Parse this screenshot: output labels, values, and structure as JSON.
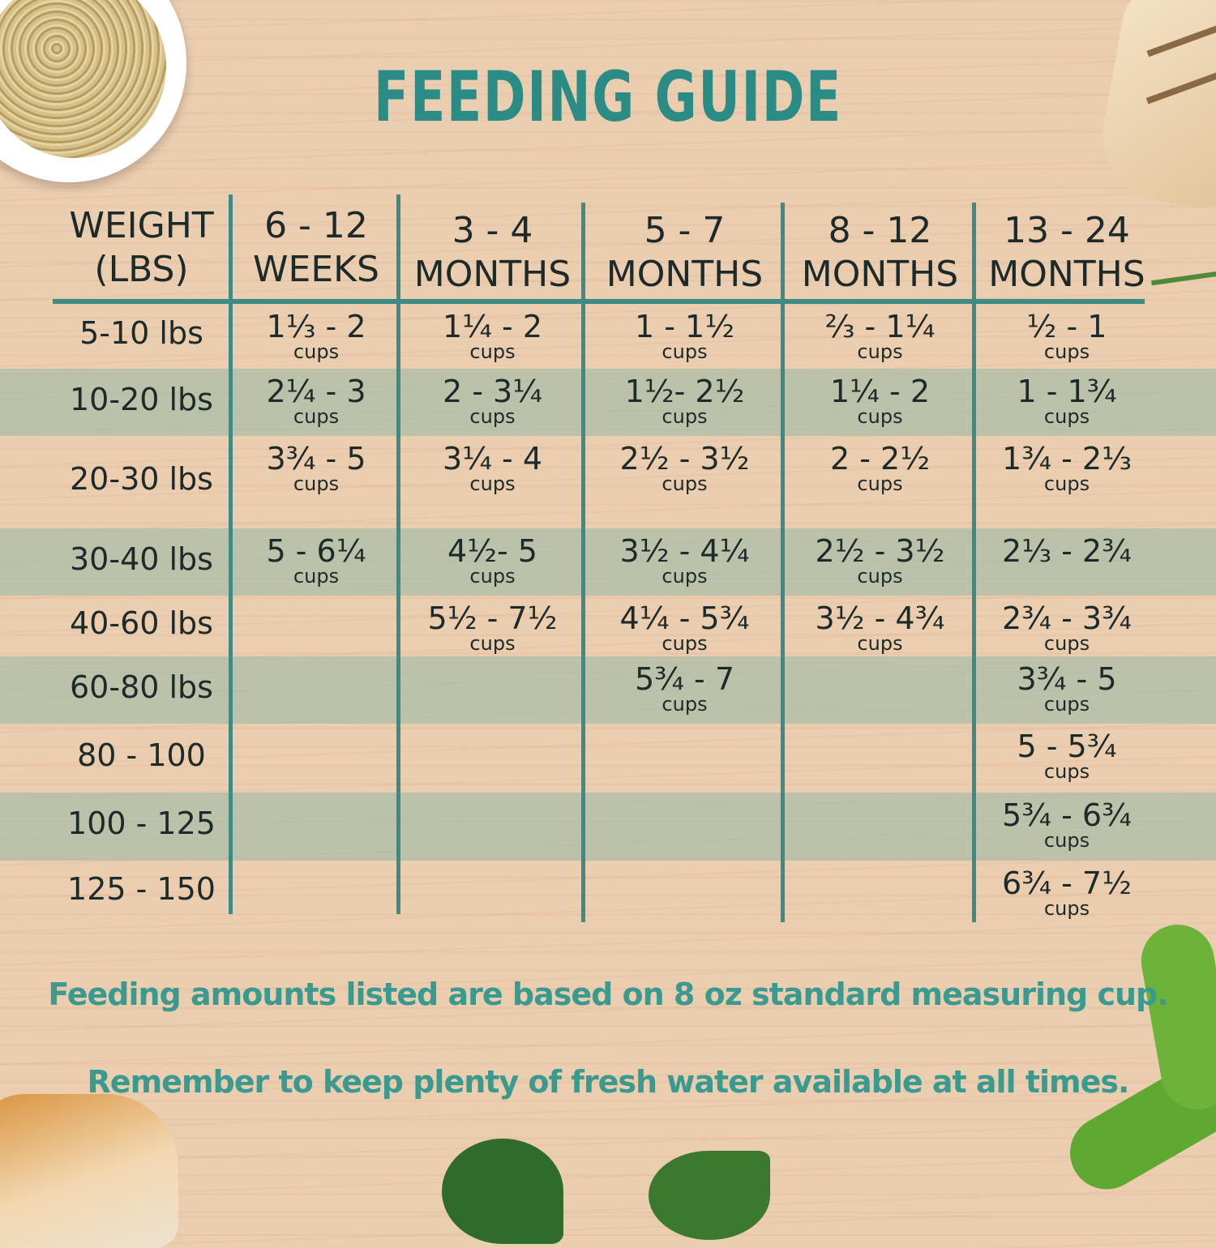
{
  "title": "FEEDING GUIDE",
  "headers": [
    {
      "line1": "WEIGHT",
      "line2": "(LBS)"
    },
    {
      "line1": "6 - 12",
      "line2": "WEEKS"
    },
    {
      "line1": "3 - 4",
      "line2": "MONTHS"
    },
    {
      "line1": "5 - 7",
      "line2": "MONTHS"
    },
    {
      "line1": "8 - 12",
      "line2": "MONTHS"
    },
    {
      "line1": "13 - 24",
      "line2": "MONTHS"
    }
  ],
  "rows": [
    {
      "weight": "5-10 lbs",
      "cells": [
        {
          "amount": "1⅓ - 2",
          "unit": "cups"
        },
        {
          "amount": "1¼ - 2",
          "unit": "cups"
        },
        {
          "amount": "1 - 1½",
          "unit": "cups"
        },
        {
          "amount": "⅔ - 1¼",
          "unit": "cups"
        },
        {
          "amount": "½ - 1",
          "unit": "cups"
        }
      ]
    },
    {
      "weight": "10-20 lbs",
      "cells": [
        {
          "amount": "2¼ - 3",
          "unit": "cups"
        },
        {
          "amount": "2 - 3¼",
          "unit": "cups"
        },
        {
          "amount": "1½- 2½",
          "unit": "cups"
        },
        {
          "amount": "1¼ - 2",
          "unit": "cups"
        },
        {
          "amount": "1 - 1¾",
          "unit": "cups"
        }
      ]
    },
    {
      "weight": "20-30 lbs",
      "cells": [
        {
          "amount": "3¾ - 5",
          "unit": "cups"
        },
        {
          "amount": "3¼ - 4",
          "unit": "cups"
        },
        {
          "amount": "2½ - 3½",
          "unit": "cups"
        },
        {
          "amount": "2 - 2½",
          "unit": "cups"
        },
        {
          "amount": "1¾ - 2⅓",
          "unit": "cups"
        }
      ]
    },
    {
      "weight": "30-40 lbs",
      "cells": [
        {
          "amount": "5 - 6¼",
          "unit": "cups"
        },
        {
          "amount": "4½- 5",
          "unit": "cups"
        },
        {
          "amount": "3½ - 4¼",
          "unit": "cups"
        },
        {
          "amount": "2½ - 3½",
          "unit": "cups"
        },
        {
          "amount": "2⅓ - 2¾",
          "unit": ""
        }
      ]
    },
    {
      "weight": "40-60 lbs",
      "cells": [
        null,
        {
          "amount": "5½ - 7½",
          "unit": "cups"
        },
        {
          "amount": "4¼ - 5¾",
          "unit": "cups"
        },
        {
          "amount": "3½ - 4¾",
          "unit": "cups"
        },
        {
          "amount": "2¾ - 3¾",
          "unit": "cups"
        }
      ]
    },
    {
      "weight": "60-80 lbs",
      "cells": [
        null,
        null,
        {
          "amount": "5¾ - 7",
          "unit": "cups"
        },
        null,
        {
          "amount": "3¾ - 5",
          "unit": "cups"
        }
      ]
    },
    {
      "weight": "80 - 100",
      "cells": [
        null,
        null,
        null,
        null,
        {
          "amount": "5 - 5¾",
          "unit": "cups"
        }
      ]
    },
    {
      "weight": "100 - 125",
      "cells": [
        null,
        null,
        null,
        null,
        {
          "amount": "5¾ - 6¾",
          "unit": "cups"
        }
      ]
    },
    {
      "weight": "125 - 150",
      "cells": [
        null,
        null,
        null,
        null,
        {
          "amount": "6¾ - 7½",
          "unit": "cups"
        }
      ]
    }
  ],
  "notes": [
    "Feeding amounts listed are based on 8 oz standard measuring cup.",
    "Remember to keep plenty of fresh water available at all times."
  ],
  "colors": {
    "accent": "#2b8c86",
    "band": "#a9bfa9",
    "background": "#ebcdaf"
  }
}
